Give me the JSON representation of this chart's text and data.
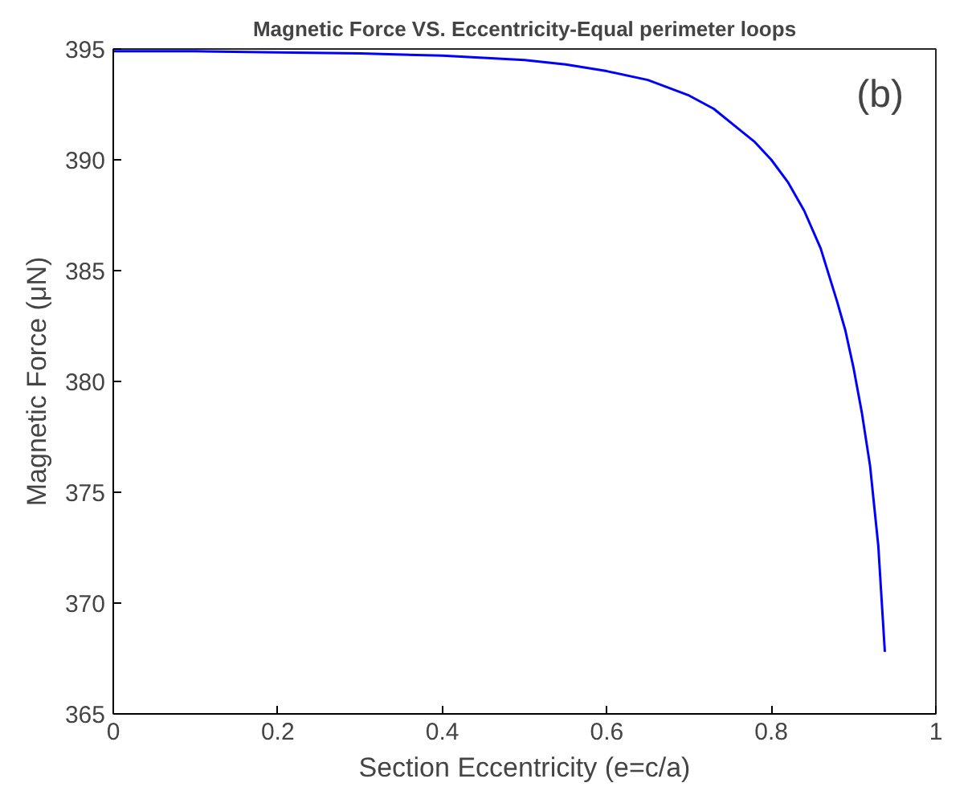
{
  "chart_data": {
    "type": "line",
    "title": "Magnetic Force VS. Eccentricity-Equal perimeter loops",
    "xlabel": "Section Eccentricity (e=c/a)",
    "ylabel": "Magnetic Force (μN)",
    "annotations": [
      "(b)"
    ],
    "x": [
      0,
      0.1,
      0.2,
      0.3,
      0.4,
      0.45,
      0.5,
      0.55,
      0.6,
      0.65,
      0.7,
      0.73,
      0.76,
      0.78,
      0.8,
      0.82,
      0.84,
      0.86,
      0.88,
      0.89,
      0.9,
      0.91,
      0.92,
      0.93,
      0.938
    ],
    "series": [
      {
        "color": "#0000ff",
        "values": [
          394.9,
          394.9,
          394.85,
          394.8,
          394.7,
          394.6,
          394.5,
          394.3,
          394.0,
          393.6,
          392.9,
          392.3,
          391.4,
          390.8,
          390.0,
          389.0,
          387.7,
          386.0,
          383.6,
          382.3,
          380.6,
          378.6,
          376.2,
          372.6,
          367.8
        ]
      }
    ],
    "xlim": [
      0,
      1
    ],
    "ylim": [
      365,
      395
    ],
    "xticks": [
      0,
      0.2,
      0.4,
      0.6,
      0.8,
      {
        "value": 1,
        "label": "1"
      }
    ],
    "yticks": [
      365,
      370,
      375,
      380,
      385,
      390,
      395
    ],
    "grid": false,
    "marker": "none",
    "line_style": "solid"
  }
}
